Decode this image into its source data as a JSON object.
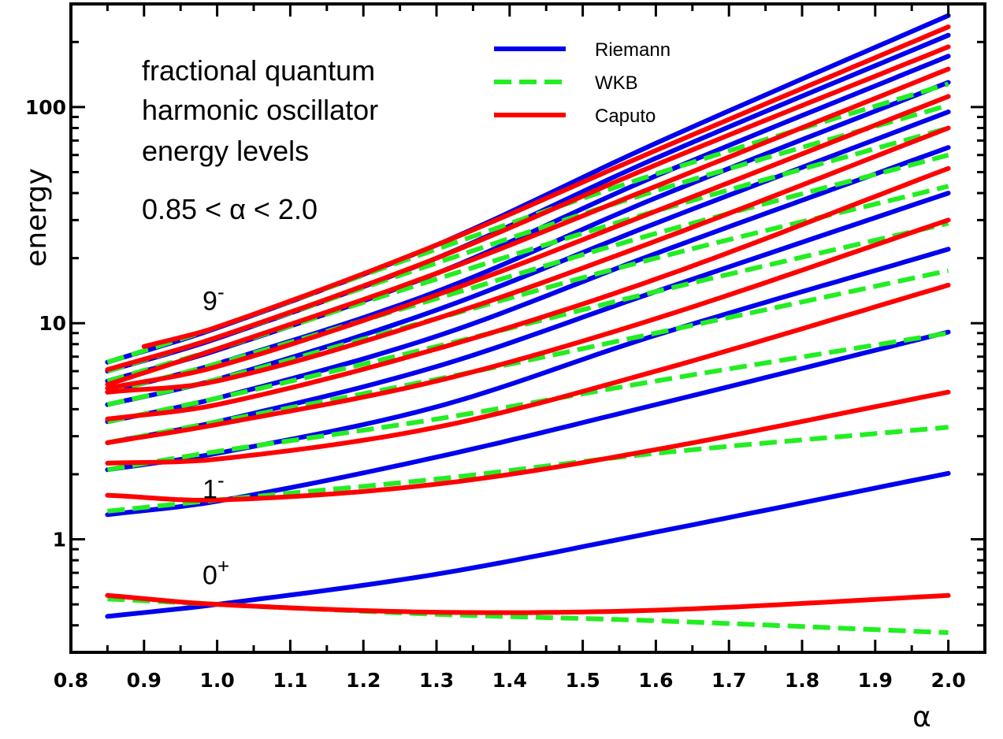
{
  "chart_data": {
    "type": "line",
    "title_lines": [
      "fractional quantum",
      "harmonic oscillator",
      "energy levels"
    ],
    "range_text": "0.85 < α < 2.0",
    "xlabel": "α",
    "ylabel": "energy",
    "xlim": [
      0.8,
      2.05
    ],
    "ylim": [
      0.3,
      300
    ],
    "yscale": "log",
    "x_ticks": [
      "0.8",
      "0.9",
      "1.0",
      "1.1",
      "1.2",
      "1.3",
      "1.4",
      "1.5",
      "1.6",
      "1.7",
      "1.8",
      "1.9",
      "2.0"
    ],
    "y_ticks": [
      "1",
      "10",
      "100"
    ],
    "grid": false,
    "legend_position": "top-right",
    "level_labels": [
      {
        "base": "0",
        "sup": "+",
        "x": 0.98,
        "y": 0.62
      },
      {
        "base": "1",
        "sup": "-",
        "x": 0.98,
        "y": 1.55
      },
      {
        "base": "9",
        "sup": "-",
        "x": 0.98,
        "y": 11.5
      }
    ],
    "series": [
      {
        "name": "Riemann",
        "color": "#0000ee",
        "dash": "solid",
        "width": 6,
        "curves": [
          {
            "x": [
              0.85,
              1.0,
              1.3,
              1.6,
              2.0
            ],
            "y": [
              0.44,
              0.5,
              0.69,
              1.08,
              2.02
            ]
          },
          {
            "x": [
              0.85,
              1.0,
              1.3,
              1.6,
              2.0
            ],
            "y": [
              1.3,
              1.5,
              2.4,
              4.2,
              9.1
            ]
          },
          {
            "x": [
              0.85,
              1.0,
              1.3,
              1.6,
              2.0
            ],
            "y": [
              2.1,
              2.5,
              4.1,
              8.8,
              22
            ]
          },
          {
            "x": [
              0.85,
              1.0,
              1.3,
              1.6,
              2.0
            ],
            "y": [
              2.8,
              3.5,
              6.3,
              14,
              40
            ]
          },
          {
            "x": [
              0.85,
              1.0,
              1.3,
              1.6,
              2.0
            ],
            "y": [
              3.5,
              4.5,
              8.7,
              21,
              65
            ]
          },
          {
            "x": [
              0.85,
              1.0,
              1.3,
              1.6,
              2.0
            ],
            "y": [
              4.2,
              5.5,
              11.5,
              29,
              95
            ]
          },
          {
            "x": [
              0.85,
              1.0,
              1.3,
              1.6,
              2.0
            ],
            "y": [
              4.8,
              6.5,
              14,
              38,
              130
            ]
          },
          {
            "x": [
              0.85,
              1.0,
              1.3,
              1.6,
              2.0
            ],
            "y": [
              5.4,
              7.5,
              17,
              48,
              172
            ]
          },
          {
            "x": [
              0.85,
              1.0,
              1.3,
              1.6,
              2.0
            ],
            "y": [
              6.0,
              8.5,
              20,
              58,
              215
            ]
          },
          {
            "x": [
              0.85,
              1.0,
              1.3,
              1.6,
              2.0
            ],
            "y": [
              6.6,
              9.5,
              23,
              68,
              265
            ]
          }
        ]
      },
      {
        "name": "WKB",
        "color": "#22ee22",
        "dash": "dashed",
        "width": 6,
        "curves": [
          {
            "x": [
              0.85,
              1.0,
              1.3,
              1.6,
              2.0
            ],
            "y": [
              0.53,
              0.5,
              0.45,
              0.42,
              0.37
            ]
          },
          {
            "x": [
              0.85,
              1.0,
              1.3,
              1.6,
              2.0
            ],
            "y": [
              1.35,
              1.52,
              1.9,
              2.5,
              3.3
            ]
          },
          {
            "x": [
              0.85,
              1.0,
              1.3,
              1.6,
              2.0
            ],
            "y": [
              2.1,
              2.55,
              3.6,
              5.4,
              9.0
            ]
          },
          {
            "x": [
              0.85,
              1.0,
              1.3,
              1.6,
              2.0
            ],
            "y": [
              2.8,
              3.5,
              5.5,
              9.0,
              17.5
            ]
          },
          {
            "x": [
              0.85,
              1.0,
              1.3,
              1.6,
              2.0
            ],
            "y": [
              3.5,
              4.5,
              7.8,
              14,
              29
            ]
          },
          {
            "x": [
              0.85,
              1.0,
              1.3,
              1.6,
              2.0
            ],
            "y": [
              4.2,
              5.5,
              10.5,
              20,
              43
            ]
          },
          {
            "x": [
              0.85,
              1.0,
              1.3,
              1.6,
              2.0
            ],
            "y": [
              4.8,
              6.5,
              13,
              26,
              60
            ]
          },
          {
            "x": [
              0.85,
              1.0,
              1.3,
              1.6,
              2.0
            ],
            "y": [
              5.4,
              7.6,
              16,
              33,
              80
            ]
          },
          {
            "x": [
              0.85,
              1.0,
              1.3,
              1.6,
              2.0
            ],
            "y": [
              6.0,
              8.6,
              19,
              41,
              102
            ]
          },
          {
            "x": [
              0.85,
              1.0,
              1.3,
              1.6,
              2.0
            ],
            "y": [
              6.6,
              9.6,
              22,
              49,
              128
            ]
          }
        ]
      },
      {
        "name": "Caputo",
        "color": "#ff0000",
        "dash": "solid",
        "width": 6,
        "curves": [
          {
            "x": [
              0.85,
              1.0,
              1.3,
              1.6,
              2.0
            ],
            "y": [
              0.55,
              0.5,
              0.46,
              0.47,
              0.55
            ]
          },
          {
            "x": [
              0.85,
              1.0,
              1.3,
              1.6,
              2.0
            ],
            "y": [
              1.6,
              1.52,
              1.8,
              2.6,
              4.8
            ]
          },
          {
            "x": [
              0.85,
              1.0,
              1.3,
              1.6,
              2.0
            ],
            "y": [
              2.25,
              2.35,
              3.3,
              6.0,
              15
            ]
          },
          {
            "x": [
              0.85,
              1.0,
              1.3,
              1.6,
              2.0
            ],
            "y": [
              2.8,
              3.4,
              5.4,
              10.5,
              30
            ]
          },
          {
            "x": [
              0.85,
              1.0,
              1.3,
              1.6,
              2.0
            ],
            "y": [
              3.6,
              4.2,
              7.6,
              16,
              52
            ]
          },
          {
            "x": [
              0.85,
              1.0,
              1.3,
              1.6,
              2.0
            ],
            "y": [
              4.8,
              5.4,
              10.5,
              24,
              80
            ]
          },
          {
            "x": [
              0.85,
              1.0,
              1.3,
              1.6,
              2.0
            ],
            "y": [
              5.0,
              6.3,
              13.5,
              33,
              112
            ]
          },
          {
            "x": [
              0.85,
              1.0,
              1.3,
              1.6,
              2.0
            ],
            "y": [
              5.2,
              7.6,
              17,
              43,
              150
            ]
          },
          {
            "x": [
              0.85,
              1.0,
              1.3,
              1.6,
              2.0
            ],
            "y": [
              6.1,
              8.6,
              20,
              54,
              190
            ]
          },
          {
            "x": [
              0.9,
              1.0,
              1.3,
              1.6,
              2.0
            ],
            "y": [
              7.8,
              9.6,
              23,
              63,
              235
            ]
          }
        ]
      }
    ]
  }
}
